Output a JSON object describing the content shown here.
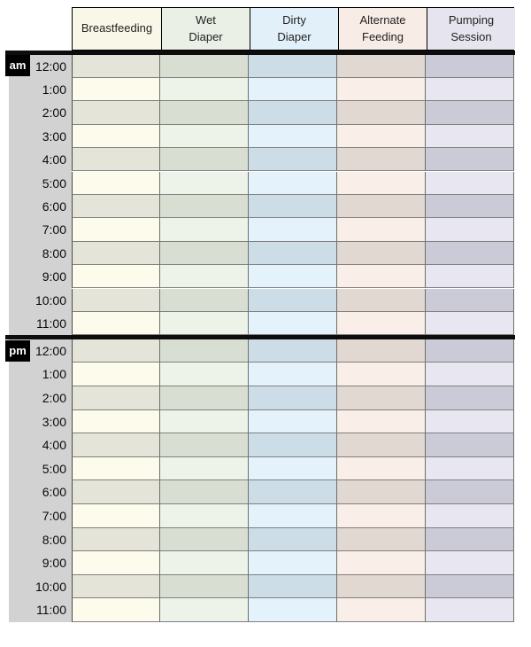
{
  "sheet": {
    "columns": [
      {
        "label": "Breastfeeding",
        "header_bg": "#f9f8e8",
        "row_light": "#fcfbec",
        "row_dark": "#e5e4d8"
      },
      {
        "label": "Wet\nDiaper",
        "header_bg": "#eaf0e6",
        "row_light": "#eef3e9",
        "row_dark": "#d8dfd2"
      },
      {
        "label": "Dirty\nDiaper",
        "header_bg": "#e1f0f9",
        "row_light": "#e4f3fb",
        "row_dark": "#ccdde7"
      },
      {
        "label": "Alternate\nFeeding",
        "header_bg": "#f8ece6",
        "row_light": "#faeee8",
        "row_dark": "#e1d8d1"
      },
      {
        "label": "Pumping\nSession",
        "header_bg": "#e6e5ef",
        "row_light": "#e8e7f1",
        "row_dark": "#cbcbd7"
      }
    ],
    "sections": [
      {
        "meridiem": "am",
        "hours": [
          "12:00",
          "1:00",
          "2:00",
          "3:00",
          "4:00",
          "5:00",
          "6:00",
          "7:00",
          "8:00",
          "9:00",
          "10:00",
          "11:00"
        ]
      },
      {
        "meridiem": "pm",
        "hours": [
          "12:00",
          "1:00",
          "2:00",
          "3:00",
          "4:00",
          "5:00",
          "6:00",
          "7:00",
          "8:00",
          "9:00",
          "10:00",
          "11:00"
        ]
      }
    ],
    "colors": {
      "time_column_bg": "#d2d2d2",
      "badge_bg": "#000000",
      "badge_text": "#ffffff",
      "section_divider": "#0d0d0d",
      "grid_horizontal": "#7f7f7f",
      "grid_vertical": "#6e6e6e",
      "header_border": "#000000",
      "header_text": "#222222",
      "time_text": "#0a0a0a"
    }
  }
}
